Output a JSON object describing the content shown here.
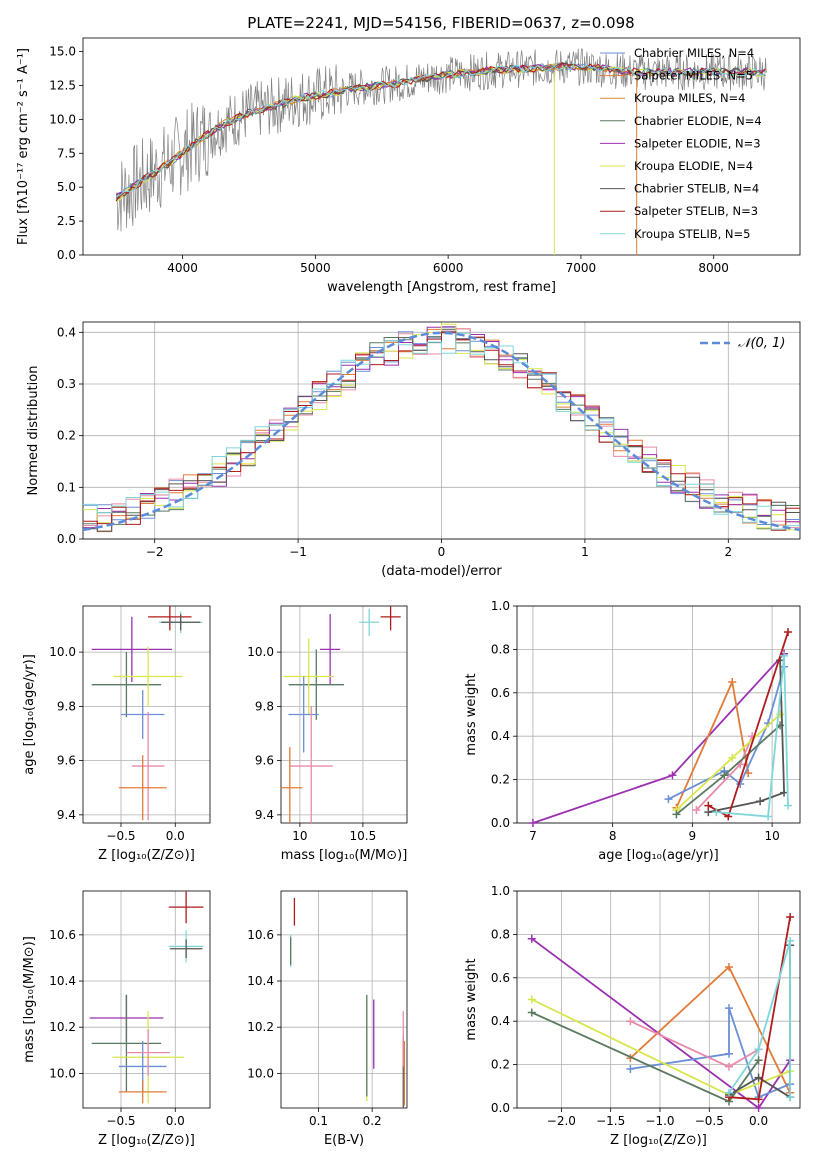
{
  "figure": {
    "title": "PLATE=2241, MJD=54156, FIBERID=0637, z=0.098"
  },
  "chart_data": [
    {
      "id": "spectrum",
      "type": "line",
      "title": "PLATE=2241, MJD=54156, FIBERID=0637, z=0.098",
      "xlabel": "wavelength [Angstrom, rest frame]",
      "ylabel": "Flux [fλ10⁻¹⁷ erg cm⁻² s⁻¹ A⁻¹]",
      "xlim": [
        3250,
        8650
      ],
      "ylim": [
        0,
        16
      ],
      "xticks": [
        4000,
        5000,
        6000,
        7000,
        8000
      ],
      "yticks": [
        0.0,
        2.5,
        5.0,
        7.5,
        10.0,
        12.5,
        15.0
      ],
      "grid": false,
      "legend_position": "right",
      "data_line_color": "#808080",
      "series": [
        {
          "name": "Chabrier MILES, N_SSP=4",
          "color": "#6b8fd6"
        },
        {
          "name": "Salpeter MILES, N_SSP=5",
          "color": "#e07b39"
        },
        {
          "name": "Kroupa MILES, N_SSP=4",
          "color": "#d98c2a"
        },
        {
          "name": "Chabrier ELODIE, N_SSP=4",
          "color": "#5a7a60"
        },
        {
          "name": "Salpeter ELODIE, N_SSP=3",
          "color": "#9b30b0"
        },
        {
          "name": "Kroupa ELODIE, N_SSP=4",
          "color": "#d8e64a"
        },
        {
          "name": "Chabrier STELIB, N_SSP=4",
          "color": "#555555"
        },
        {
          "name": "Salpeter STELIB, N_SSP=3",
          "color": "#b01c1c"
        },
        {
          "name": "Kroupa STELIB, N_SSP=5",
          "color": "#7fd6da"
        }
      ],
      "continuum": {
        "x": [
          3500,
          3700,
          3900,
          4100,
          4300,
          4500,
          4700,
          4900,
          5100,
          5300,
          5500,
          5700,
          5900,
          6100,
          6300,
          6500,
          6700,
          6900,
          7100,
          7300,
          7420
        ],
        "y": [
          4.2,
          5.5,
          6.8,
          8.3,
          9.6,
          10.5,
          11.0,
          11.6,
          11.9,
          12.3,
          12.5,
          12.8,
          13.2,
          13.4,
          13.6,
          13.7,
          13.8,
          13.9,
          13.8,
          13.6,
          13.5
        ]
      }
    },
    {
      "id": "residuals",
      "type": "histogram",
      "xlabel": "(data-model)/error",
      "ylabel": "Normed distribution",
      "xlim": [
        -2.5,
        2.5
      ],
      "ylim": [
        0,
        0.42
      ],
      "xticks": [
        -2,
        -1,
        0,
        1,
        2
      ],
      "yticks": [
        0.0,
        0.1,
        0.2,
        0.3,
        0.4
      ],
      "grid": true,
      "legend_position": "top-right",
      "gaussian_label": "𝒩(0, 1)",
      "gaussian_color": "#5b8bd9",
      "bins": {
        "start": -2.5,
        "width": 0.1,
        "count": 50
      }
    },
    {
      "id": "z-age",
      "type": "errorbar",
      "xlabel": "Z [log₁₀(Z/Z⊙)]",
      "ylabel": "age  [log₁₀(age/yr)]",
      "xlim": [
        -0.85,
        0.32
      ],
      "ylim": [
        9.37,
        10.17
      ],
      "xticks": [
        -0.5,
        0.0
      ],
      "xtick_labels": [
        "−0.5",
        "0.0"
      ],
      "yticks": [
        9.4,
        9.6,
        9.8,
        10.0
      ],
      "grid": true,
      "points": [
        {
          "x": -0.05,
          "y": 10.13,
          "xerr": 0.2,
          "yerr": 0.05,
          "color": "#b01c1c"
        },
        {
          "x": 0.05,
          "y": 10.11,
          "xerr": 0.2,
          "yerr": 0.04,
          "color": "#7fd6da"
        },
        {
          "x": 0.05,
          "y": 10.11,
          "xerr": 0.18,
          "yerr": 0.03,
          "color": "#555555"
        },
        {
          "x": -0.4,
          "y": 10.01,
          "xerr": 0.37,
          "yerr": 0.12,
          "color": "#9b30b0"
        },
        {
          "x": -0.45,
          "y": 9.88,
          "xerr": 0.32,
          "yerr": 0.12,
          "color": "#5a7a60"
        },
        {
          "x": -0.25,
          "y": 9.91,
          "xerr": 0.32,
          "yerr": 0.11,
          "color": "#d8e64a"
        },
        {
          "x": -0.3,
          "y": 9.77,
          "xerr": 0.2,
          "yerr": 0.09,
          "color": "#6b8fd6"
        },
        {
          "x": -0.25,
          "y": 9.58,
          "xerr": 0.15,
          "yerr": 0.2,
          "color": "#e88aaa"
        },
        {
          "x": -0.3,
          "y": 9.5,
          "xerr": 0.22,
          "yerr": 0.12,
          "color": "#e07b39"
        }
      ]
    },
    {
      "id": "mass-age",
      "type": "errorbar",
      "xlabel": "mass [log₁₀(M/M⊙)]",
      "ylabel": "",
      "xlim": [
        9.85,
        10.85
      ],
      "ylim": [
        9.37,
        10.17
      ],
      "xticks": [
        10.0,
        10.5
      ],
      "yticks": [
        9.4,
        9.6,
        9.8,
        10.0
      ],
      "grid": true,
      "points": [
        {
          "x": 10.72,
          "y": 10.13,
          "xerr": 0.08,
          "yerr": 0.05,
          "color": "#b01c1c"
        },
        {
          "x": 10.55,
          "y": 10.11,
          "xerr": 0.08,
          "yerr": 0.05,
          "color": "#7fd6da"
        },
        {
          "x": 10.24,
          "y": 10.01,
          "xerr": 0.08,
          "yerr": 0.13,
          "color": "#9b30b0"
        },
        {
          "x": 10.13,
          "y": 9.88,
          "xerr": 0.22,
          "yerr": 0.13,
          "color": "#5a7a60"
        },
        {
          "x": 10.07,
          "y": 9.91,
          "xerr": 0.2,
          "yerr": 0.14,
          "color": "#d8e64a"
        },
        {
          "x": 10.03,
          "y": 9.77,
          "xerr": 0.12,
          "yerr": 0.14,
          "color": "#6b8fd6"
        },
        {
          "x": 10.09,
          "y": 9.58,
          "xerr": 0.17,
          "yerr": 0.22,
          "color": "#e88aaa"
        },
        {
          "x": 9.92,
          "y": 9.5,
          "xerr": 0.1,
          "yerr": 0.15,
          "color": "#e07b39"
        }
      ]
    },
    {
      "id": "age-weight",
      "type": "line",
      "xlabel": "age  [log₁₀(age/yr)]",
      "ylabel": "mass weight",
      "xlim": [
        6.8,
        10.35
      ],
      "ylim": [
        0,
        1.0
      ],
      "xticks": [
        7,
        8,
        9,
        10
      ],
      "yticks": [
        0.0,
        0.2,
        0.4,
        0.6,
        0.8,
        1.0
      ],
      "grid": true,
      "series": [
        {
          "color": "#9b30b0",
          "x": [
            7.0,
            8.75,
            10.15
          ],
          "y": [
            0.0,
            0.22,
            0.78
          ]
        },
        {
          "color": "#e07b39",
          "x": [
            8.8,
            9.5,
            9.7
          ],
          "y": [
            0.07,
            0.65,
            0.23
          ]
        },
        {
          "color": "#6b8fd6",
          "x": [
            8.7,
            9.4,
            9.6,
            9.95,
            10.15
          ],
          "y": [
            0.11,
            0.24,
            0.18,
            0.46,
            0.72
          ]
        },
        {
          "color": "#e88aaa",
          "x": [
            9.05,
            9.6,
            9.75
          ],
          "y": [
            0.06,
            0.27,
            0.4
          ]
        },
        {
          "color": "#d8e64a",
          "x": [
            8.8,
            9.5,
            10.1
          ],
          "y": [
            0.06,
            0.3,
            0.5
          ]
        },
        {
          "color": "#5a7a60",
          "x": [
            8.8,
            9.4,
            10.1
          ],
          "y": [
            0.04,
            0.22,
            0.45
          ]
        },
        {
          "color": "#555555",
          "x": [
            9.2,
            9.85,
            10.15,
            10.1
          ],
          "y": [
            0.05,
            0.1,
            0.14,
            0.75
          ]
        },
        {
          "color": "#b01c1c",
          "x": [
            9.2,
            9.45,
            10.2
          ],
          "y": [
            0.08,
            0.03,
            0.88
          ]
        },
        {
          "color": "#7fd6da",
          "x": [
            9.3,
            9.95,
            10.15,
            10.2
          ],
          "y": [
            0.05,
            0.03,
            0.77,
            0.08
          ]
        }
      ]
    },
    {
      "id": "z-mass",
      "type": "errorbar",
      "xlabel": "Z [log₁₀(Z/Z⊙)]",
      "ylabel": "mass [log₁₀(M/M⊙)]",
      "xlim": [
        -0.85,
        0.32
      ],
      "ylim": [
        9.85,
        10.79
      ],
      "xticks": [
        -0.5,
        0.0
      ],
      "xtick_labels": [
        "−0.5",
        "0.0"
      ],
      "yticks": [
        10.0,
        10.2,
        10.4,
        10.6
      ],
      "grid": true,
      "points": [
        {
          "x": 0.1,
          "y": 10.72,
          "xerr": 0.16,
          "yerr": 0.07,
          "color": "#b01c1c"
        },
        {
          "x": 0.1,
          "y": 10.55,
          "xerr": 0.16,
          "yerr": 0.07,
          "color": "#7fd6da"
        },
        {
          "x": 0.1,
          "y": 10.54,
          "xerr": 0.15,
          "yerr": 0.04,
          "color": "#555555"
        },
        {
          "x": -0.45,
          "y": 10.24,
          "xerr": 0.34,
          "yerr": 0.1,
          "color": "#9b30b0"
        },
        {
          "x": -0.45,
          "y": 10.13,
          "xerr": 0.32,
          "yerr": 0.21,
          "color": "#5a7a60"
        },
        {
          "x": -0.25,
          "y": 10.07,
          "xerr": 0.33,
          "yerr": 0.2,
          "color": "#d8e64a"
        },
        {
          "x": -0.3,
          "y": 10.03,
          "xerr": 0.22,
          "yerr": 0.11,
          "color": "#6b8fd6"
        },
        {
          "x": -0.25,
          "y": 10.09,
          "xerr": 0.2,
          "yerr": 0.1,
          "color": "#e88aaa"
        },
        {
          "x": -0.3,
          "y": 9.92,
          "xerr": 0.22,
          "yerr": 0.05,
          "color": "#e07b39"
        }
      ]
    },
    {
      "id": "ebv-mass",
      "type": "errorbar",
      "xlabel": "E(B-V)",
      "ylabel": "",
      "xlim": [
        0.03,
        0.265
      ],
      "ylim": [
        9.85,
        10.79
      ],
      "xticks": [
        0.1,
        0.2
      ],
      "yticks": [
        10.0,
        10.2,
        10.4,
        10.6
      ],
      "grid": true,
      "points": [
        {
          "x": 0.055,
          "y": 10.7,
          "xerr": 0.0,
          "yerr": 0.06,
          "color": "#b01c1c"
        },
        {
          "x": 0.048,
          "y": 10.53,
          "xerr": 0.0,
          "yerr": 0.07,
          "color": "#7fd6da"
        },
        {
          "x": 0.048,
          "y": 10.53,
          "xerr": 0.0,
          "yerr": 0.06,
          "color": "#5a7a60"
        },
        {
          "x": 0.19,
          "y": 10.1,
          "xerr": 0.0,
          "yerr": 0.22,
          "color": "#d8e64a"
        },
        {
          "x": 0.19,
          "y": 10.12,
          "xerr": 0.0,
          "yerr": 0.22,
          "color": "#5a7a60"
        },
        {
          "x": 0.203,
          "y": 10.17,
          "xerr": 0.0,
          "yerr": 0.15,
          "color": "#9b30b0"
        },
        {
          "x": 0.258,
          "y": 10.0,
          "xerr": 0.0,
          "yerr": 0.16,
          "color": "#555555"
        },
        {
          "x": 0.258,
          "y": 10.15,
          "xerr": 0.0,
          "yerr": 0.12,
          "color": "#e88aaa"
        },
        {
          "x": 0.26,
          "y": 10.0,
          "xerr": 0.0,
          "yerr": 0.14,
          "color": "#e07b39"
        }
      ]
    },
    {
      "id": "z-weight",
      "type": "line",
      "xlabel": "Z [log₁₀(Z/Z⊙)]",
      "ylabel": "mass weight",
      "xlim": [
        -2.45,
        0.42
      ],
      "ylim": [
        0,
        1.0
      ],
      "xticks": [
        -2.0,
        -1.5,
        -1.0,
        -0.5,
        0.0
      ],
      "xtick_labels": [
        "−2.0",
        "−1.5",
        "−1.0",
        "−0.5",
        "0.0"
      ],
      "yticks": [
        0.0,
        0.2,
        0.4,
        0.6,
        0.8,
        1.0
      ],
      "grid": true,
      "series": [
        {
          "color": "#9b30b0",
          "x": [
            -2.3,
            0.0,
            0.32
          ],
          "y": [
            0.78,
            0.0,
            0.22
          ]
        },
        {
          "color": "#e07b39",
          "x": [
            -1.3,
            -0.3,
            0.32
          ],
          "y": [
            0.23,
            0.65,
            0.07
          ]
        },
        {
          "color": "#6b8fd6",
          "x": [
            -1.3,
            -0.3,
            -0.3,
            0.0,
            0.32
          ],
          "y": [
            0.18,
            0.25,
            0.46,
            0.05,
            0.11
          ]
        },
        {
          "color": "#e88aaa",
          "x": [
            -1.3,
            -0.3,
            0.0
          ],
          "y": [
            0.4,
            0.19,
            0.27
          ]
        },
        {
          "color": "#d8e64a",
          "x": [
            -2.3,
            -0.3,
            0.32
          ],
          "y": [
            0.5,
            0.06,
            0.17
          ]
        },
        {
          "color": "#5a7a60",
          "x": [
            -2.3,
            -0.3,
            0.0
          ],
          "y": [
            0.44,
            0.03,
            0.22
          ]
        },
        {
          "color": "#555555",
          "x": [
            -0.3,
            0.0,
            0.32,
            0.32
          ],
          "y": [
            0.06,
            0.14,
            0.05,
            0.75
          ]
        },
        {
          "color": "#b01c1c",
          "x": [
            -0.3,
            0.0,
            0.32
          ],
          "y": [
            0.05,
            0.04,
            0.88
          ]
        },
        {
          "color": "#7fd6da",
          "x": [
            -0.3,
            0.0,
            0.32,
            0.32
          ],
          "y": [
            0.07,
            0.27,
            0.77,
            0.05
          ]
        }
      ]
    }
  ]
}
